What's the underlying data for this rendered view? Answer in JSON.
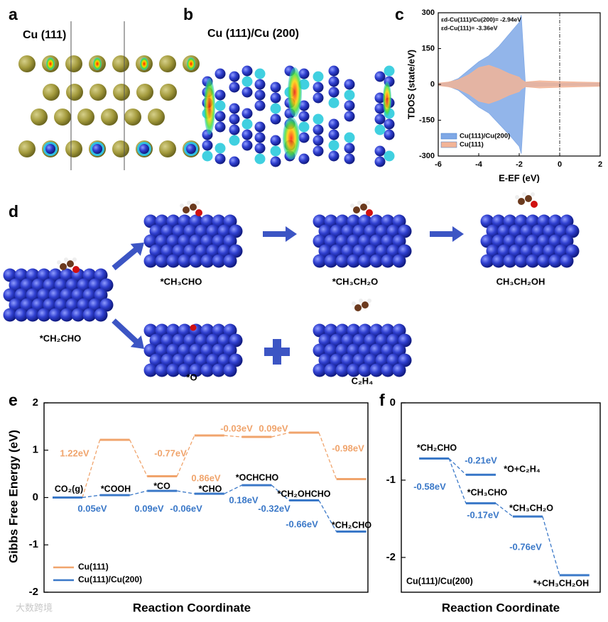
{
  "panel_labels": [
    "a",
    "b",
    "c",
    "d",
    "e",
    "f"
  ],
  "structures": {
    "a_title": "Cu (111)",
    "b_title": "Cu (111)/Cu (200)",
    "d_labels": [
      "*CH₂CHO",
      "*CH₃CHO",
      "*CH₃CH₂O",
      "CH₃CH₂OH",
      "*O",
      "C₂H₄"
    ]
  },
  "watermark": "大数跨境",
  "chart_data": [
    {
      "type": "dos_area",
      "xlabel": "E-EF (eV)",
      "ylabel": "TDOS (state/eV)",
      "annotations": [
        "εd-Cu(111)/Cu(200)= -2.94eV",
        "εd-Cu(111)= -3.36eV"
      ],
      "x": [
        -6,
        -5.5,
        -5,
        -4.5,
        -4,
        -3.5,
        -3,
        -2.5,
        -2,
        -1.9,
        -1.7,
        -1,
        0,
        1,
        2
      ],
      "xlim": [
        -6,
        2
      ],
      "xticks": [
        -6,
        -4,
        -2,
        0,
        2
      ],
      "ylim": [
        -300,
        300
      ],
      "yticks": [
        -300,
        -150,
        0,
        150,
        300
      ],
      "vline": 0,
      "legend": "lower left",
      "series": [
        {
          "name": "Cu(111)/Cu(200)",
          "color": "#7fa8e6",
          "values": [
            3,
            8,
            25,
            60,
            95,
            120,
            160,
            210,
            260,
            290,
            10,
            8,
            5,
            5,
            5
          ],
          "values_down": [
            -3,
            -8,
            -25,
            -60,
            -95,
            -120,
            -165,
            -210,
            -260,
            -290,
            -10,
            -8,
            -5,
            -5,
            -5
          ]
        },
        {
          "name": "Cu(111)",
          "color": "#f2b497",
          "values": [
            5,
            10,
            20,
            40,
            70,
            80,
            65,
            45,
            30,
            20,
            10,
            15,
            12,
            10,
            8
          ],
          "values_down": [
            -5,
            -10,
            -20,
            -40,
            -70,
            -80,
            -65,
            -45,
            -30,
            -20,
            -10,
            -15,
            -12,
            -10,
            -8
          ]
        }
      ]
    },
    {
      "type": "energy_profile",
      "xlabel": "Reaction Coordinate",
      "ylabel": "Gibbs Free Energy (eV)",
      "categories": [
        "CO₂(g)",
        "*COOH",
        "*CO",
        "*CHO",
        "*OCHCHO",
        "*CH₂OHCHO",
        "*CH₂CHO"
      ],
      "ylim": [
        -2,
        2
      ],
      "yticks": [
        -2,
        -1,
        0,
        1,
        2
      ],
      "legend": "lower left",
      "series": [
        {
          "name": "Cu(111)",
          "color": "#f0a46c",
          "values": [
            0,
            1.22,
            0.45,
            1.31,
            1.28,
            1.37,
            0.39
          ],
          "step_labels": [
            "1.22eV",
            "-0.77eV",
            "0.86eV",
            "-0.03eV",
            "0.09eV",
            "-0.98eV"
          ]
        },
        {
          "name": "Cu(111)/Cu(200)",
          "color": "#3a78c8",
          "values": [
            0,
            0.05,
            0.14,
            0.08,
            0.26,
            -0.06,
            -0.72
          ],
          "step_labels": [
            "0.05eV",
            "0.09eV",
            "-0.06eV",
            "0.18eV",
            "-0.32eV",
            "-0.66eV"
          ]
        }
      ]
    },
    {
      "type": "energy_branch",
      "xlabel": "Reaction Coordinate",
      "annotation": "Cu(111)/Cu(200)",
      "color": "#3a78c8",
      "ylim": [
        -2.45,
        0
      ],
      "yticks": [
        0,
        -1,
        -2
      ],
      "xlim": [
        -0.7,
        3.55
      ],
      "states": [
        {
          "label": "*CH₂CHO",
          "x": 0,
          "value": -0.72
        },
        {
          "label": "*O+C₂H₄",
          "x": 1,
          "value": -0.93
        },
        {
          "label": "*CH₃CHO",
          "x": 1,
          "value": -1.3
        },
        {
          "label": "*CH₃CH₂O",
          "x": 2,
          "value": -1.47
        },
        {
          "label": "*+CH₃CH₂OH",
          "x": 3,
          "value": -2.23
        }
      ],
      "steps": [
        {
          "from": 0,
          "to": 1,
          "label": "-0.21eV"
        },
        {
          "from": 0,
          "to": 2,
          "label": "-0.58eV"
        },
        {
          "from": 2,
          "to": 3,
          "label": "-0.17eV"
        },
        {
          "from": 3,
          "to": 4,
          "label": "-0.76eV"
        }
      ]
    }
  ]
}
